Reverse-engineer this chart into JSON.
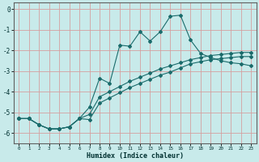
{
  "xlabel": "Humidex (Indice chaleur)",
  "background_color": "#c8eaea",
  "grid_color": "#d4a0a0",
  "line_color": "#1a6b6b",
  "xlim": [
    -0.5,
    23.5
  ],
  "ylim": [
    -6.5,
    0.3
  ],
  "xticks": [
    0,
    1,
    2,
    3,
    4,
    5,
    6,
    7,
    8,
    9,
    10,
    11,
    12,
    13,
    14,
    15,
    16,
    17,
    18,
    19,
    20,
    21,
    22,
    23
  ],
  "yticks": [
    0,
    -1,
    -2,
    -3,
    -4,
    -5,
    -6
  ],
  "curve1_x": [
    0,
    1,
    2,
    3,
    4,
    5,
    6,
    7,
    8,
    9,
    10,
    11,
    12,
    13,
    14,
    15,
    16,
    17,
    18,
    19,
    20,
    21,
    22,
    23
  ],
  "curve1_y": [
    -5.3,
    -5.3,
    -5.6,
    -5.8,
    -5.8,
    -5.7,
    -5.3,
    -4.75,
    -3.35,
    -3.6,
    -1.75,
    -1.8,
    -1.1,
    -1.55,
    -1.1,
    -0.35,
    -0.3,
    -1.5,
    -2.15,
    -2.35,
    -2.5,
    -2.6,
    -2.65,
    -2.75
  ],
  "curve2_x": [
    0,
    1,
    2,
    3,
    4,
    5,
    6,
    7,
    8,
    9,
    10,
    11,
    12,
    13,
    14,
    15,
    16,
    17,
    18,
    19,
    20,
    21,
    22,
    23
  ],
  "curve2_y": [
    -5.3,
    -5.3,
    -5.6,
    -5.8,
    -5.8,
    -5.7,
    -5.3,
    -5.35,
    -4.55,
    -4.3,
    -4.05,
    -3.8,
    -3.6,
    -3.4,
    -3.2,
    -3.05,
    -2.85,
    -2.65,
    -2.55,
    -2.45,
    -2.4,
    -2.35,
    -2.3,
    -2.3
  ],
  "curve3_x": [
    0,
    1,
    2,
    3,
    4,
    5,
    6,
    7,
    8,
    9,
    10,
    11,
    12,
    13,
    14,
    15,
    16,
    17,
    18,
    19,
    20,
    21,
    22,
    23
  ],
  "curve3_y": [
    -5.3,
    -5.3,
    -5.6,
    -5.8,
    -5.8,
    -5.7,
    -5.3,
    -5.1,
    -4.25,
    -4.0,
    -3.75,
    -3.5,
    -3.3,
    -3.1,
    -2.9,
    -2.75,
    -2.6,
    -2.45,
    -2.35,
    -2.25,
    -2.2,
    -2.15,
    -2.1,
    -2.1
  ]
}
